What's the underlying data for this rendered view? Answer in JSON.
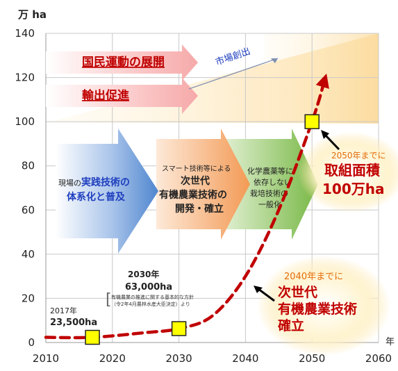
{
  "chart_data": {
    "type": "line",
    "y_unit": "万 ha",
    "x_unit": "年",
    "xlim": [
      2010,
      2060
    ],
    "ylim": [
      0,
      140
    ],
    "x_ticks": [
      "2010",
      "2020",
      "2030",
      "2040",
      "2050",
      "2060"
    ],
    "y_ticks": [
      "0",
      "20",
      "40",
      "60",
      "80",
      "100",
      "120",
      "140"
    ],
    "grid": true,
    "series": [
      {
        "x": [
          2010,
          2017,
          2025,
          2030,
          2035,
          2040,
          2045,
          2050,
          2052
        ],
        "y": [
          2.35,
          2.35,
          4.5,
          6.3,
          12,
          30,
          60,
          100,
          120
        ]
      }
    ],
    "markers": [
      {
        "x": 2017,
        "y": 2.35
      },
      {
        "x": 2030,
        "y": 6.3
      },
      {
        "x": 2050,
        "y": 100
      }
    ],
    "annotations": {
      "market": "市場創出",
      "national_movement": "国民運動の展開",
      "export": "輸出促進",
      "practical_line1_pre": "現場の",
      "practical_line1_bold": "実践技術の",
      "practical_line2": "体系化と普及",
      "smart_line1": "スマート技術等による",
      "smart_line2": "次世代",
      "smart_line3": "有機農業技術の",
      "smart_line4": "開発・確立",
      "chem_line1": "化学農薬等に",
      "chem_line2": "依存しない",
      "chem_line3": "栽培技術の",
      "chem_line4": "一般化",
      "y2017_year": "2017年",
      "y2017_value": "23,500ha",
      "y2030_year": "2030年",
      "y2030_value": "63,000ha",
      "policy_line1": "有機農業の推進に関する基本的な方針",
      "policy_line2": "（令2年4月農林水産大臣決定）より",
      "goal2050_line1": "2050年までに",
      "goal2050_line2": "取組面積",
      "goal2050_line3": "100万ha",
      "goal2040_line1": "2040年までに",
      "goal2040_line2": "次世代",
      "goal2040_line3": "有機農業技術",
      "goal2040_line4": "確立"
    },
    "colors": {
      "curve": "#c00000",
      "marker_fill": "#ffff00",
      "orange_text": "#e46c0a",
      "red_text": "#c00000",
      "blue_text": "#1f3fbf",
      "grid": "#c8c8c8"
    }
  }
}
